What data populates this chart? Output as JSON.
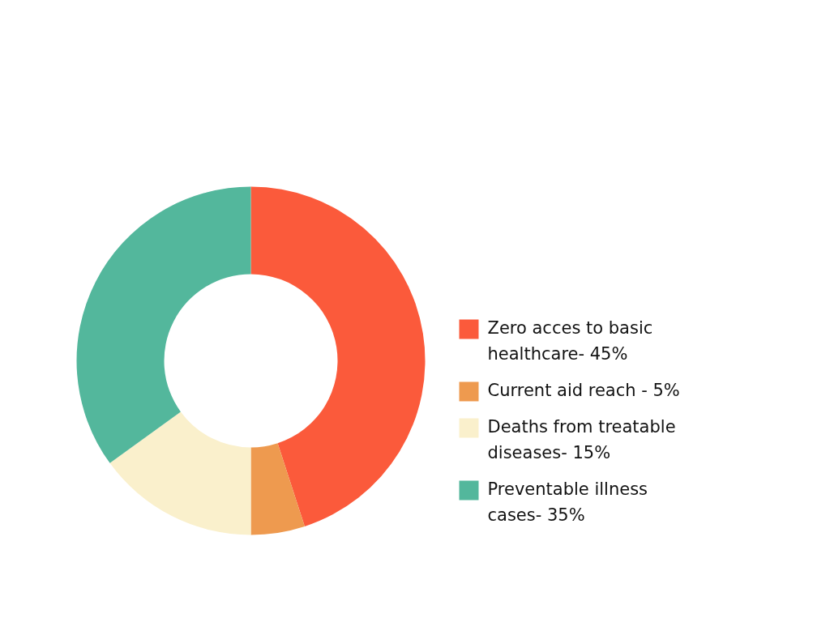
{
  "chart_data": {
    "type": "donut",
    "categories": [
      "Zero acces to basic healthcare- 45%",
      "Current aid reach - 5%",
      "Deaths from treatable diseases- 15%",
      "Preventable illness cases- 35%"
    ],
    "values": [
      45,
      5,
      15,
      35
    ],
    "colors": [
      "#fb5a3b",
      "#ee9a4f",
      "#faf0cc",
      "#53b79c"
    ],
    "legend": "right"
  }
}
